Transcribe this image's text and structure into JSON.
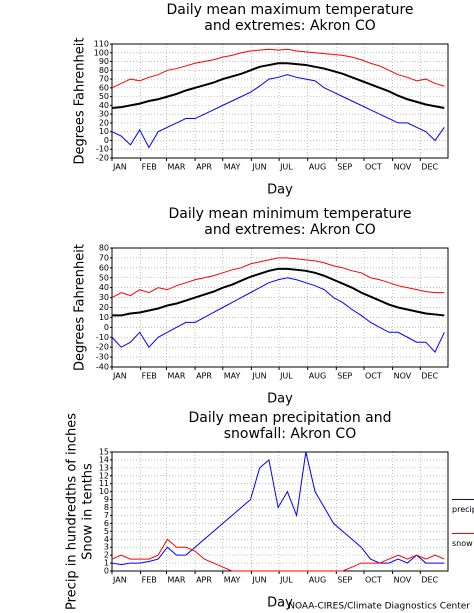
{
  "chart_data": [
    {
      "type": "line",
      "title": [
        "Daily mean maximum temperature",
        "and extremes: Akron CO"
      ],
      "ylabel": "Degrees Fahrenheit",
      "xlabel": "Day",
      "x": [
        1,
        11,
        21,
        31,
        41,
        51,
        61,
        71,
        81,
        91,
        101,
        111,
        121,
        131,
        141,
        151,
        161,
        171,
        181,
        191,
        201,
        211,
        221,
        231,
        241,
        251,
        261,
        271,
        281,
        291,
        301,
        311,
        321,
        331,
        341,
        351,
        361
      ],
      "xlim": [
        1,
        365
      ],
      "xticks": [
        {
          "value": 1,
          "label": "JAN"
        },
        {
          "value": 32,
          "label": "FEB"
        },
        {
          "value": 60,
          "label": "MAR"
        },
        {
          "value": 91,
          "label": "APR"
        },
        {
          "value": 121,
          "label": "MAY"
        },
        {
          "value": 152,
          "label": "JUN"
        },
        {
          "value": 182,
          "label": "JUL"
        },
        {
          "value": 213,
          "label": "AUG"
        },
        {
          "value": 244,
          "label": "SEP"
        },
        {
          "value": 274,
          "label": "OCT"
        },
        {
          "value": 305,
          "label": "NOV"
        },
        {
          "value": 335,
          "label": "DEC"
        }
      ],
      "ylim": [
        -20,
        110
      ],
      "yticks": [
        -20,
        -10,
        0,
        10,
        20,
        30,
        40,
        50,
        60,
        70,
        80,
        90,
        100,
        110
      ],
      "grid": true,
      "series": [
        {
          "color": "#ff0000",
          "values": [
            60,
            65,
            70,
            68,
            72,
            75,
            80,
            82,
            85,
            88,
            90,
            92,
            95,
            97,
            100,
            102,
            103,
            104,
            103,
            104,
            102,
            101,
            100,
            99,
            98,
            97,
            95,
            92,
            88,
            85,
            80,
            75,
            72,
            68,
            70,
            65,
            62
          ]
        },
        {
          "color": "#000000",
          "values": [
            37,
            38,
            40,
            42,
            45,
            47,
            50,
            53,
            57,
            60,
            63,
            66,
            70,
            73,
            76,
            80,
            84,
            86,
            88,
            88,
            87,
            86,
            84,
            82,
            79,
            76,
            72,
            68,
            64,
            60,
            56,
            51,
            47,
            44,
            41,
            39,
            37
          ]
        },
        {
          "color": "#0000ff",
          "values": [
            10,
            5,
            -5,
            12,
            -8,
            10,
            15,
            20,
            25,
            25,
            30,
            35,
            40,
            45,
            50,
            55,
            62,
            70,
            72,
            75,
            72,
            70,
            68,
            60,
            55,
            50,
            45,
            40,
            35,
            30,
            25,
            20,
            20,
            15,
            10,
            0,
            15
          ]
        }
      ]
    },
    {
      "type": "line",
      "title": [
        "Daily mean minimum temperature",
        "and extremes: Akron CO"
      ],
      "ylabel": "Degrees Fahrenheit",
      "xlabel": "Day",
      "x": [
        1,
        11,
        21,
        31,
        41,
        51,
        61,
        71,
        81,
        91,
        101,
        111,
        121,
        131,
        141,
        151,
        161,
        171,
        181,
        191,
        201,
        211,
        221,
        231,
        241,
        251,
        261,
        271,
        281,
        291,
        301,
        311,
        321,
        331,
        341,
        351,
        361
      ],
      "xlim": [
        1,
        365
      ],
      "xticks": [
        {
          "value": 1,
          "label": "JAN"
        },
        {
          "value": 32,
          "label": "FEB"
        },
        {
          "value": 60,
          "label": "MAR"
        },
        {
          "value": 91,
          "label": "APR"
        },
        {
          "value": 121,
          "label": "MAY"
        },
        {
          "value": 152,
          "label": "JUN"
        },
        {
          "value": 182,
          "label": "JUL"
        },
        {
          "value": 213,
          "label": "AUG"
        },
        {
          "value": 244,
          "label": "SEP"
        },
        {
          "value": 274,
          "label": "OCT"
        },
        {
          "value": 305,
          "label": "NOV"
        },
        {
          "value": 335,
          "label": "DEC"
        }
      ],
      "ylim": [
        -40,
        80
      ],
      "yticks": [
        -40,
        -30,
        -20,
        -10,
        0,
        10,
        20,
        30,
        40,
        50,
        60,
        70,
        80
      ],
      "grid": true,
      "series": [
        {
          "color": "#ff0000",
          "values": [
            30,
            35,
            32,
            38,
            35,
            40,
            38,
            42,
            45,
            48,
            50,
            52,
            55,
            58,
            60,
            64,
            66,
            68,
            70,
            70,
            69,
            68,
            67,
            65,
            62,
            60,
            57,
            55,
            50,
            48,
            45,
            42,
            40,
            38,
            36,
            35,
            35
          ]
        },
        {
          "color": "#000000",
          "values": [
            12,
            12,
            14,
            15,
            17,
            19,
            22,
            24,
            27,
            30,
            33,
            36,
            40,
            43,
            47,
            51,
            54,
            57,
            59,
            59,
            58,
            57,
            55,
            52,
            48,
            44,
            40,
            35,
            31,
            27,
            23,
            20,
            18,
            16,
            14,
            13,
            12
          ]
        },
        {
          "color": "#0000ff",
          "values": [
            -10,
            -20,
            -15,
            -5,
            -20,
            -10,
            -5,
            0,
            5,
            5,
            10,
            15,
            20,
            25,
            30,
            35,
            40,
            45,
            48,
            50,
            48,
            45,
            42,
            38,
            30,
            25,
            18,
            12,
            5,
            0,
            -5,
            -5,
            -10,
            -15,
            -15,
            -25,
            -5
          ]
        }
      ]
    },
    {
      "type": "line",
      "title": [
        "Daily mean precipitation and",
        "snowfall: Akron CO"
      ],
      "ylabel": [
        "Precip in hundredths of inches",
        "Snow in tenths"
      ],
      "xlabel": "Day",
      "x": [
        1,
        11,
        21,
        31,
        41,
        51,
        61,
        71,
        81,
        91,
        101,
        111,
        121,
        131,
        141,
        151,
        161,
        171,
        181,
        191,
        201,
        211,
        221,
        231,
        241,
        251,
        261,
        271,
        281,
        291,
        301,
        311,
        321,
        331,
        341,
        351,
        361
      ],
      "xlim": [
        1,
        365
      ],
      "xticks": [
        {
          "value": 1,
          "label": "JAN"
        },
        {
          "value": 32,
          "label": "FEB"
        },
        {
          "value": 60,
          "label": "MAR"
        },
        {
          "value": 91,
          "label": "APR"
        },
        {
          "value": 121,
          "label": "MAY"
        },
        {
          "value": 152,
          "label": "JUN"
        },
        {
          "value": 182,
          "label": "JUL"
        },
        {
          "value": 213,
          "label": "AUG"
        },
        {
          "value": 244,
          "label": "SEP"
        },
        {
          "value": 274,
          "label": "OCT"
        },
        {
          "value": 305,
          "label": "NOV"
        },
        {
          "value": 335,
          "label": "DEC"
        }
      ],
      "ylim": [
        0,
        15
      ],
      "yticks": [
        0,
        1,
        2,
        3,
        4,
        5,
        6,
        7,
        8,
        9,
        10,
        11,
        12,
        13,
        14,
        15
      ],
      "grid": true,
      "legend": "right",
      "series": [
        {
          "name": "precip",
          "color": "#0000ff",
          "values": [
            1,
            0.8,
            1,
            1,
            1.2,
            1.5,
            3,
            2,
            2,
            3,
            4,
            5,
            6,
            7,
            8,
            9,
            13,
            14,
            8,
            10,
            7,
            15,
            10,
            8,
            6,
            5,
            4,
            3,
            1.5,
            1,
            1,
            1.5,
            1,
            2,
            1,
            1,
            1
          ]
        },
        {
          "name": "snow",
          "color": "#ff0000",
          "values": [
            1.5,
            2,
            1.5,
            1.5,
            1.5,
            2,
            4,
            3,
            3,
            2.5,
            1.5,
            1,
            0.5,
            0,
            0,
            0,
            0,
            0,
            0,
            0,
            0,
            0,
            0,
            0,
            0,
            0,
            0.5,
            1,
            1,
            1,
            1.5,
            2,
            1.5,
            2,
            1.5,
            2,
            1.5
          ]
        }
      ]
    }
  ],
  "footer": "NOAA-CIRES/Climate Diagnostics Center"
}
